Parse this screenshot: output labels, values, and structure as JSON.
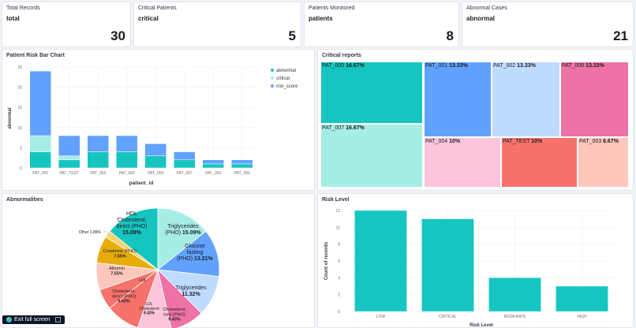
{
  "kpis": [
    {
      "title": "Total Records",
      "subtitle": "total",
      "value": "30"
    },
    {
      "title": "Critical Patients",
      "subtitle": "critical",
      "value": "5"
    },
    {
      "title": "Patients Monitored",
      "subtitle": "patients",
      "value": "8"
    },
    {
      "title": "Abnormal Cases",
      "subtitle": "abnormal",
      "value": "21"
    }
  ],
  "panels": {
    "bar": "Patient Risk Bar Chart",
    "treemap": "Critical reports",
    "pie": "Abnormalities",
    "risk": "Risk Level"
  },
  "exit_button": "Exit full screen",
  "chart_data": [
    {
      "type": "bar",
      "stacked": true,
      "title": "Patient Risk Bar Chart",
      "xlabel": "patient_id",
      "ylabel": "abnormal",
      "ylim": [
        0,
        25
      ],
      "yticks": [
        "0",
        "5",
        "10",
        "15",
        "20",
        "25"
      ],
      "legend": "right",
      "categories": [
        "PAT_001",
        "PAT_TEST",
        "PAT_002",
        "PAT_006",
        "PAT_004",
        "PAT_007",
        "PAT_003",
        "PAT_005"
      ],
      "series": [
        {
          "name": "abnormal",
          "color": "#16c5c0",
          "values": [
            4,
            2,
            4,
            4,
            3,
            2,
            1,
            1
          ]
        },
        {
          "name": "critical",
          "color": "#a6ede6",
          "values": [
            4,
            1,
            0,
            0,
            0,
            0,
            0,
            0
          ]
        },
        {
          "name": "risk_score",
          "color": "#61a2ff",
          "values": [
            16,
            5,
            4,
            4,
            3,
            2,
            1,
            1
          ]
        }
      ]
    },
    {
      "type": "treemap",
      "title": "Critical reports",
      "items": [
        {
          "label": "PAT_005",
          "pct": "16.67%",
          "color": "#16c5c0"
        },
        {
          "label": "PAT_007",
          "pct": "16.67%",
          "color": "#a6ede6"
        },
        {
          "label": "PAT_001",
          "pct": "13.33%",
          "color": "#61a2ff"
        },
        {
          "label": "PAT_002",
          "pct": "13.33%",
          "color": "#bfdbff"
        },
        {
          "label": "PAT_006",
          "pct": "13.33%",
          "color": "#ee72a6"
        },
        {
          "label": "PAT_004",
          "pct": "10%",
          "color": "#fcc5dc"
        },
        {
          "label": "PAT_TEST",
          "pct": "10%",
          "color": "#f6726a"
        },
        {
          "label": "PAT_003",
          "pct": "6.67%",
          "color": "#ffc7bb"
        }
      ]
    },
    {
      "type": "pie",
      "title": "Abnormalities",
      "slices": [
        {
          "label": "Triglycerides (PHO)",
          "pct": "15.09%",
          "value": 15.09,
          "color": "#a6ede6"
        },
        {
          "label": "Glucose fasting (PHO)",
          "pct": "13.21%",
          "value": 13.21,
          "color": "#61a2ff"
        },
        {
          "label": "Triglycerides",
          "pct": "11.32%",
          "value": 11.32,
          "color": "#bfdbff"
        },
        {
          "label": "Cholesterol, total (PHO)",
          "pct": "9.43%",
          "value": 9.43,
          "color": "#ee72a6"
        },
        {
          "label": "LDL Cholesterol",
          "pct": "9.43%",
          "value": 9.43,
          "color": "#fcc5dc"
        },
        {
          "label": "Cholesterol, direct (PHO)",
          "pct": "9.43%",
          "value": 9.43,
          "color": "#f6726a"
        },
        {
          "label": "LDL",
          "pct": "",
          "value": null,
          "color": "#f6726a"
        },
        {
          "label": "Albumin",
          "pct": "7.55%",
          "value": 7.55,
          "color": "#ffc7bb"
        },
        {
          "label": "Creatinine (PHO)",
          "pct": "7.55%",
          "value": 7.55,
          "color": "#e7ac0b"
        },
        {
          "label": "Other",
          "pct": "1.89%",
          "value": 1.89,
          "color": "#f6d36d"
        },
        {
          "label": "HDL Cholesterol, direct (PHO)",
          "pct": "15.09%",
          "value": 15.09,
          "color": "#16c5c0"
        }
      ]
    },
    {
      "type": "bar",
      "title": "Risk Level",
      "xlabel": "Risk Level",
      "ylabel": "Count of records",
      "ylim": [
        0,
        12
      ],
      "yticks": [
        "0",
        "2",
        "4",
        "6",
        "8",
        "10",
        "12"
      ],
      "categories": [
        "LOW",
        "CRITICAL",
        "MODERATE",
        "HIGH"
      ],
      "values": [
        12,
        11,
        4,
        3
      ],
      "color": "#16c5c0"
    }
  ]
}
